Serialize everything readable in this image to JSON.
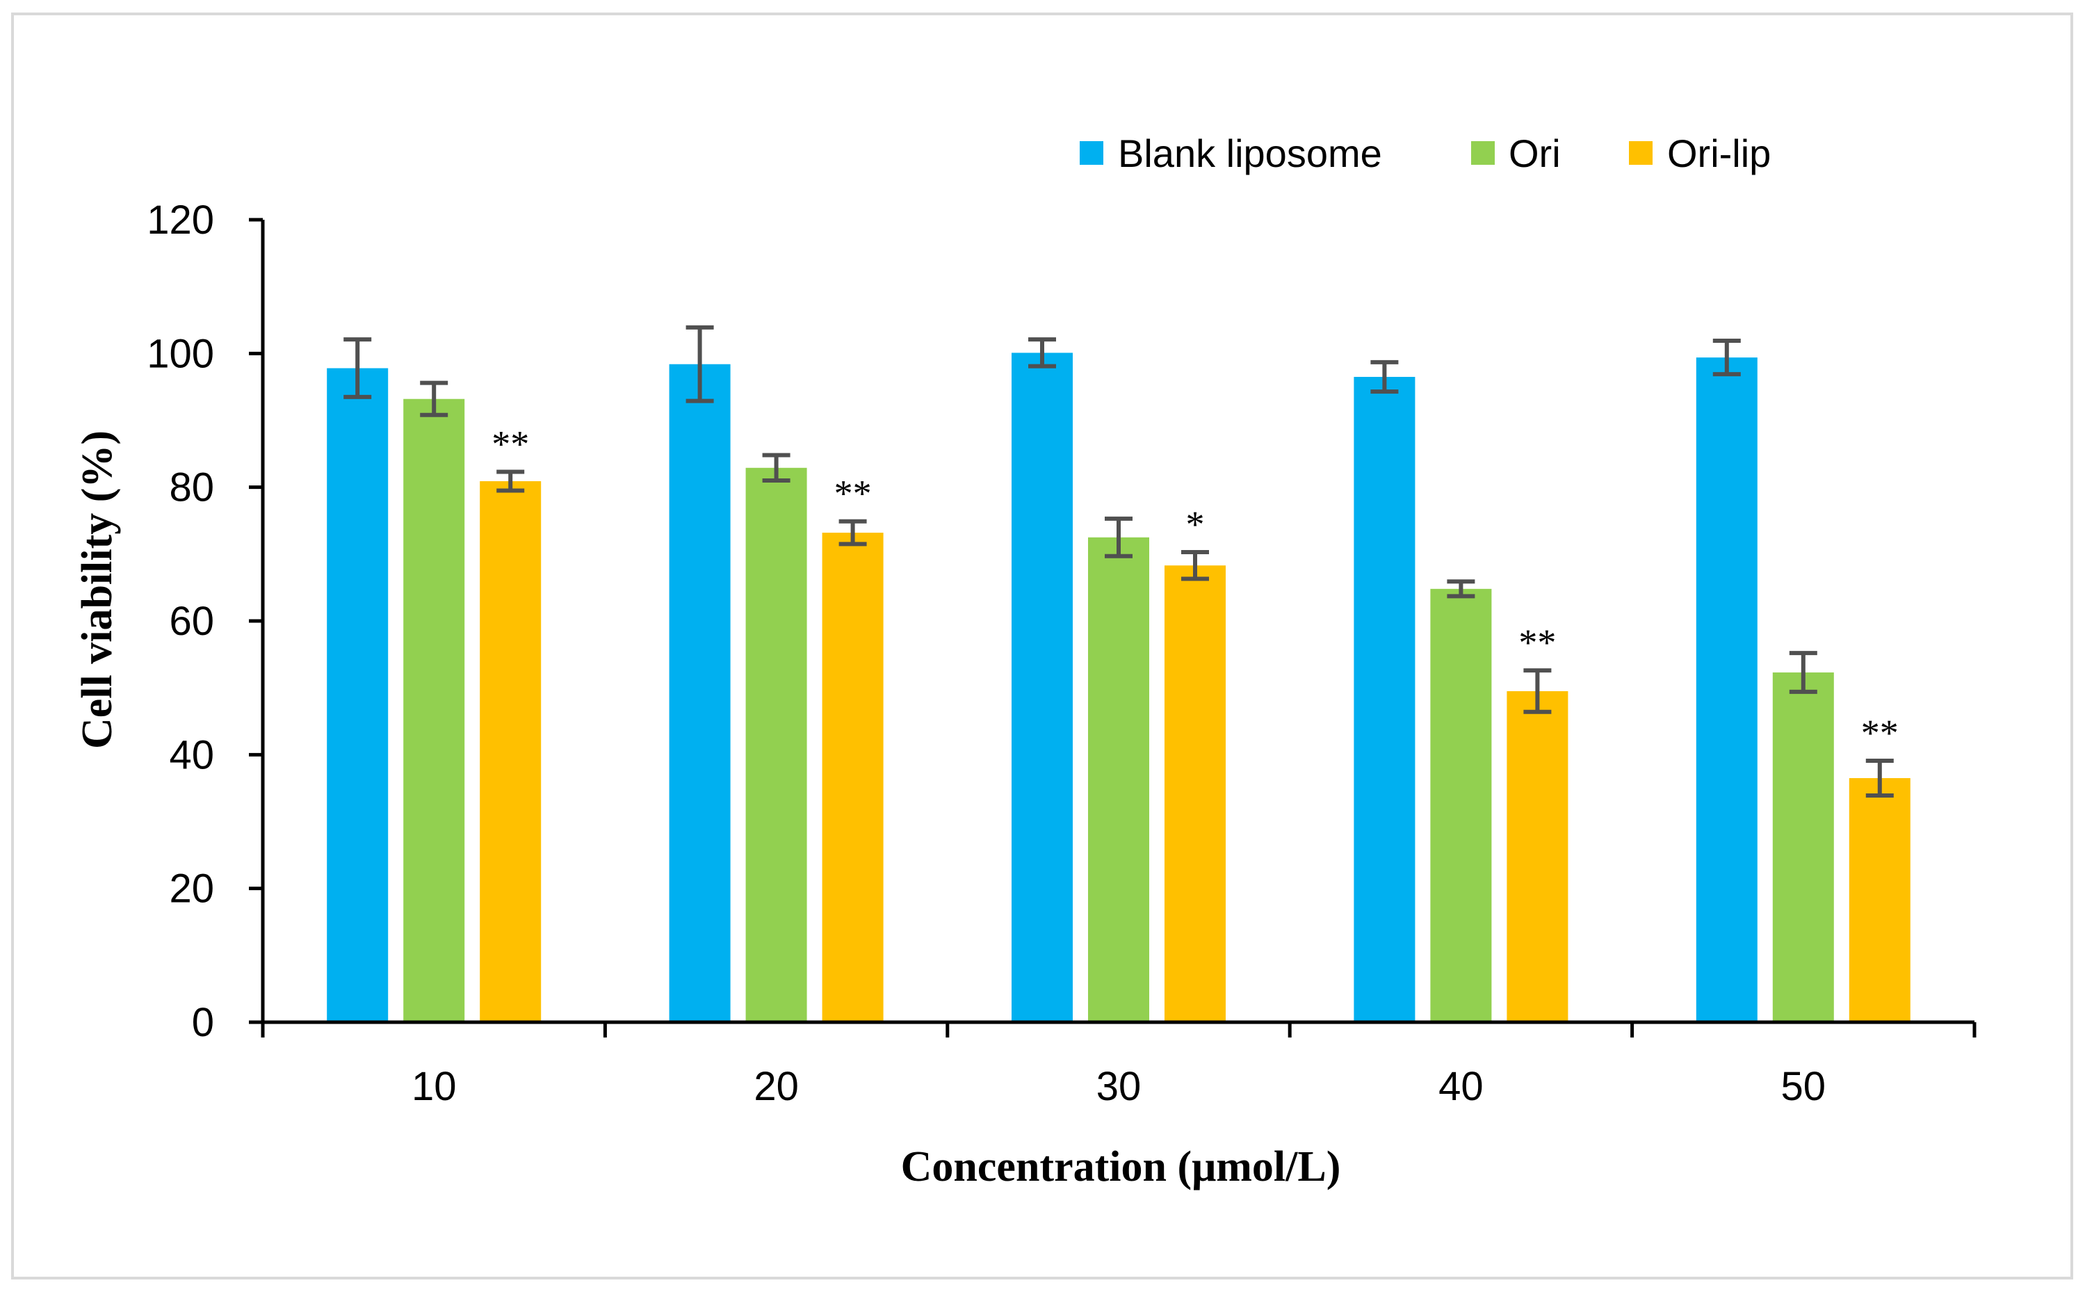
{
  "chart_data": {
    "type": "bar",
    "title": "",
    "xlabel": "Concentration (μmol/L)",
    "ylabel": "Cell viability (%)",
    "ylim": [
      0,
      120
    ],
    "yticks": [
      0,
      20,
      40,
      60,
      80,
      100,
      120
    ],
    "categories": [
      "10",
      "20",
      "30",
      "40",
      "50"
    ],
    "grid": false,
    "legend_position": "top-right",
    "series": [
      {
        "name": "Blank liposome",
        "color": "#00b0f0",
        "values": [
          97.8,
          98.4,
          100.1,
          96.5,
          99.4
        ],
        "errors": [
          4.3,
          5.5,
          2.0,
          2.2,
          2.5
        ]
      },
      {
        "name": "Ori",
        "color": "#92d050",
        "values": [
          93.2,
          82.9,
          72.5,
          64.8,
          52.3
        ],
        "errors": [
          2.4,
          1.9,
          2.8,
          1.1,
          2.9
        ]
      },
      {
        "name": "Ori-lip",
        "color": "#ffc000",
        "values": [
          80.9,
          73.2,
          68.3,
          49.5,
          36.5
        ],
        "errors": [
          1.4,
          1.7,
          2.0,
          3.1,
          2.6
        ],
        "significance": [
          "**",
          "**",
          "*",
          "**",
          "**"
        ]
      }
    ]
  }
}
